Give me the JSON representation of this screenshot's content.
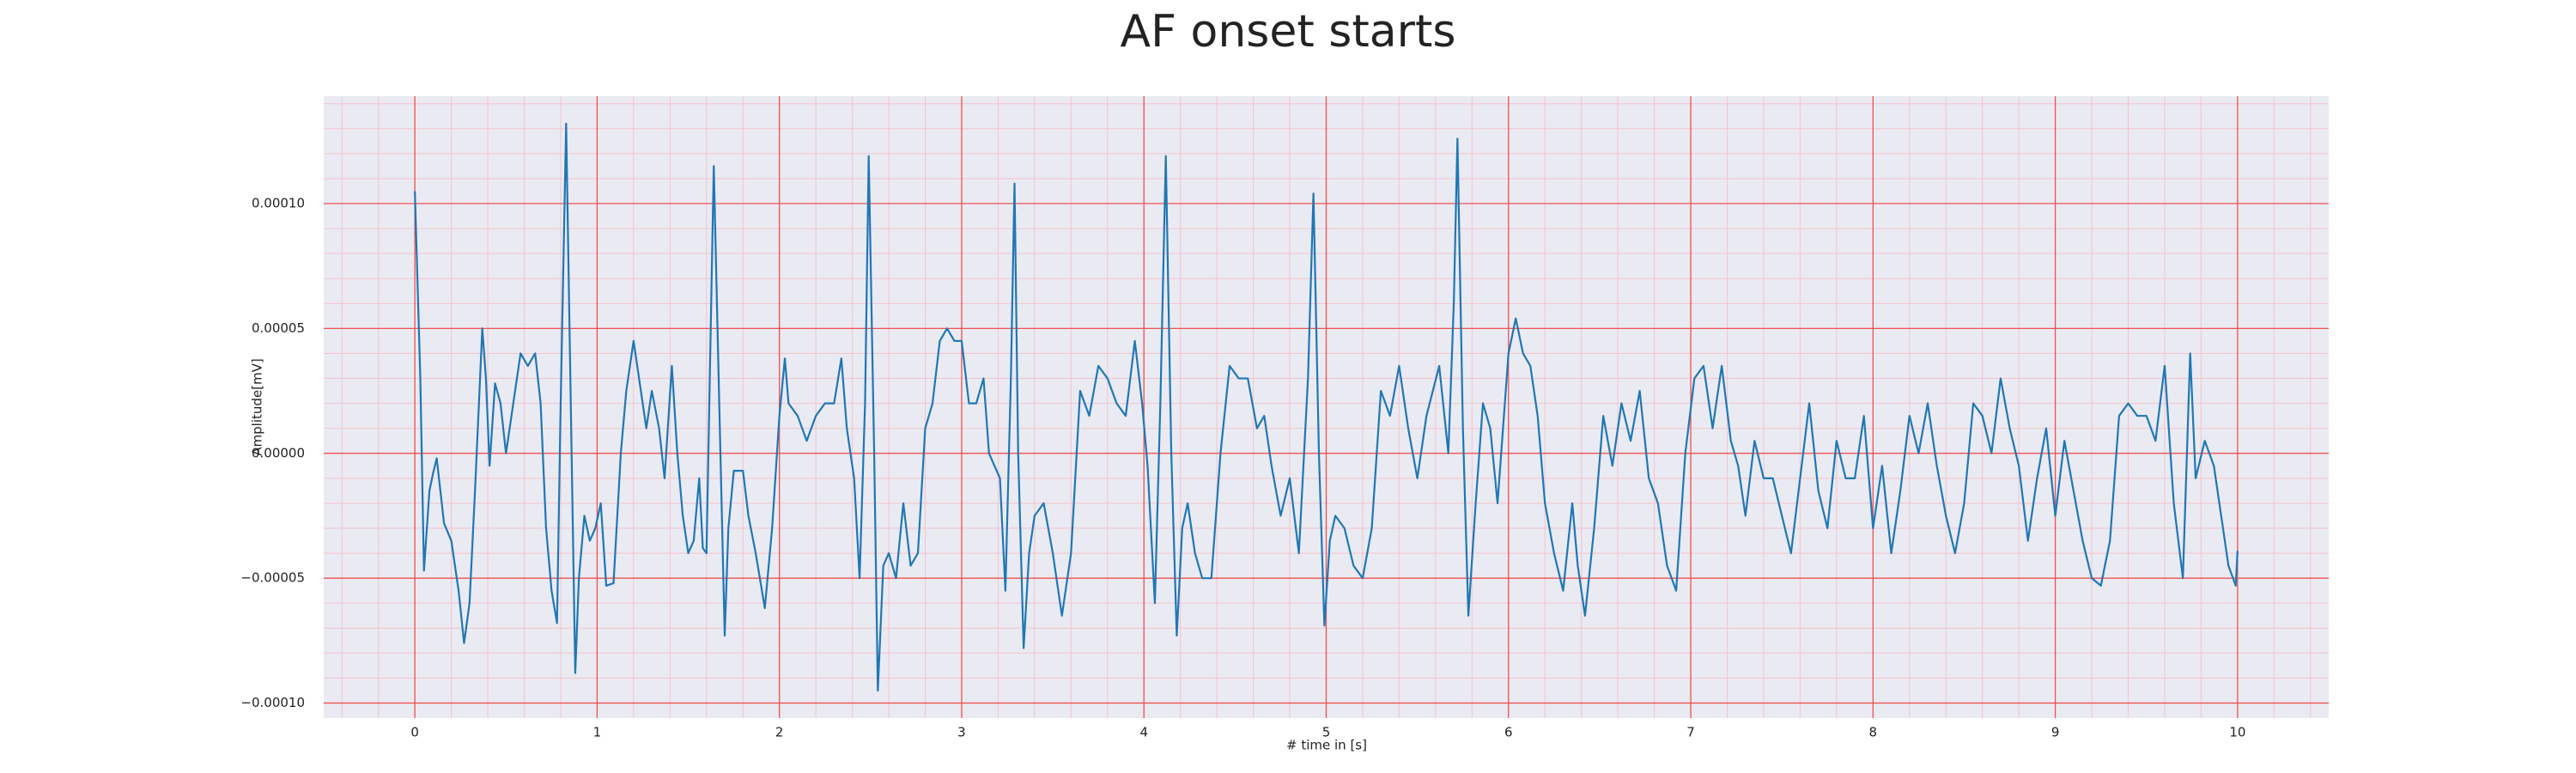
{
  "chart_data": {
    "type": "line",
    "title": "AF onset starts",
    "xlabel": "# time in [s]",
    "ylabel": "Amplitude[mV]",
    "background": "#eaeaf2",
    "major_grid_color": "#f05050",
    "minor_grid_color": "#f3c4cc",
    "grid": true,
    "minor_grid": true,
    "xlim": [
      -0.5,
      10.5
    ],
    "ylim": [
      -0.000106,
      0.000143
    ],
    "xticks": [
      0,
      1,
      2,
      3,
      4,
      5,
      6,
      7,
      8,
      9,
      10
    ],
    "yticks": [
      {
        "value": -0.0001,
        "label": "−0.00010"
      },
      {
        "value": -5e-05,
        "label": "−0.00005"
      },
      {
        "value": 0,
        "label": "0.00000"
      },
      {
        "value": 5e-05,
        "label": "0.00005"
      },
      {
        "value": 0.0001,
        "label": "0.00010"
      }
    ],
    "xminor": [
      -0.4,
      -0.2,
      0.2,
      0.4,
      0.6,
      0.8,
      1.2,
      1.4,
      1.6,
      1.8,
      2.2,
      2.4,
      2.6,
      2.8,
      3.2,
      3.4,
      3.6,
      3.8,
      4.2,
      4.4,
      4.6,
      4.8,
      5.2,
      5.4,
      5.6,
      5.8,
      6.2,
      6.4,
      6.6,
      6.8,
      7.2,
      7.4,
      7.6,
      7.8,
      8.2,
      8.4,
      8.6,
      8.8,
      9.2,
      9.4,
      9.6,
      9.8,
      10.2,
      10.4
    ],
    "yminor": [
      -9e-05,
      -8e-05,
      -7e-05,
      -6e-05,
      -4e-05,
      -3e-05,
      -2e-05,
      -1e-05,
      1e-05,
      2e-05,
      3e-05,
      4e-05,
      6e-05,
      7e-05,
      8e-05,
      9e-05,
      0.00011,
      0.00012,
      0.00013,
      0.00014
    ],
    "series": [
      {
        "name": "signal",
        "color": "#1f77b4",
        "x": [
          0,
          0.03,
          0.05,
          0.08,
          0.1,
          0.12,
          0.14,
          0.16,
          0.2,
          0.24,
          0.27,
          0.3,
          0.33,
          0.37,
          0.39,
          0.41,
          0.44,
          0.47,
          0.5,
          0.53,
          0.58,
          0.62,
          0.66,
          0.69,
          0.72,
          0.75,
          0.78,
          0.8,
          0.83,
          0.86,
          0.88,
          0.9,
          0.93,
          0.96,
          0.99,
          1.02,
          1.05,
          1.09,
          1.13,
          1.16,
          1.2,
          1.23,
          1.27,
          1.3,
          1.34,
          1.37,
          1.41,
          1.44,
          1.47,
          1.5,
          1.53,
          1.56,
          1.58,
          1.6,
          1.64,
          1.67,
          1.7,
          1.72,
          1.75,
          1.8,
          1.83,
          1.87,
          1.92,
          1.96,
          2.0,
          2.03,
          2.05,
          2.1,
          2.15,
          2.2,
          2.25,
          2.3,
          2.34,
          2.37,
          2.41,
          2.44,
          2.47,
          2.49,
          2.52,
          2.54,
          2.57,
          2.6,
          2.64,
          2.68,
          2.72,
          2.76,
          2.8,
          2.84,
          2.88,
          2.92,
          2.96,
          3.0,
          3.04,
          3.08,
          3.12,
          3.15,
          3.18,
          3.21,
          3.24,
          3.27,
          3.29,
          3.31,
          3.34,
          3.37,
          3.4,
          3.45,
          3.5,
          3.55,
          3.6,
          3.65,
          3.7,
          3.75,
          3.8,
          3.85,
          3.9,
          3.95,
          3.99,
          4.02,
          4.06,
          4.09,
          4.12,
          4.15,
          4.18,
          4.21,
          4.24,
          4.28,
          4.32,
          4.37,
          4.42,
          4.47,
          4.52,
          4.57,
          4.62,
          4.66,
          4.7,
          4.75,
          4.8,
          4.85,
          4.9,
          4.93,
          4.96,
          4.99,
          5.02,
          5.05,
          5.1,
          5.15,
          5.2,
          5.25,
          5.3,
          5.35,
          5.4,
          5.45,
          5.5,
          5.55,
          5.62,
          5.67,
          5.7,
          5.72,
          5.75,
          5.78,
          5.82,
          5.86,
          5.9,
          5.94,
          6.0,
          6.04,
          6.08,
          6.12,
          6.16,
          6.2,
          6.25,
          6.3,
          6.35,
          6.38,
          6.42,
          6.47,
          6.52,
          6.57,
          6.62,
          6.67,
          6.72,
          6.77,
          6.82,
          6.87,
          6.92,
          6.97,
          7.02,
          7.07,
          7.12,
          7.17,
          7.22,
          7.26,
          7.3,
          7.35,
          7.4,
          7.45,
          7.5,
          7.55,
          7.6,
          7.65,
          7.7,
          7.75,
          7.8,
          7.85,
          7.9,
          7.95,
          8.0,
          8.05,
          8.1,
          8.15,
          8.2,
          8.25,
          8.3,
          8.35,
          8.4,
          8.45,
          8.5,
          8.55,
          8.6,
          8.65,
          8.7,
          8.75,
          8.8,
          8.85,
          8.9,
          8.95,
          9.0,
          9.05,
          9.1,
          9.15,
          9.2,
          9.25,
          9.3,
          9.35,
          9.4,
          9.45,
          9.5,
          9.55,
          9.6,
          9.65,
          9.7,
          9.74,
          9.77,
          9.82,
          9.87,
          9.9,
          9.95,
          9.99,
          10.0
        ],
        "values": [
          0.000105,
          3e-05,
          -4.7e-05,
          -1.5e-05,
          -8e-06,
          -2e-06,
          -1.5e-05,
          -2.8e-05,
          -3.5e-05,
          -5.5e-05,
          -7.6e-05,
          -6e-05,
          -1.5e-05,
          5e-05,
          3e-05,
          -5e-06,
          2.8e-05,
          2e-05,
          0,
          1.5e-05,
          4e-05,
          3.5e-05,
          4e-05,
          2e-05,
          -3e-05,
          -5.5e-05,
          -6.8e-05,
          2e-05,
          0.000132,
          0,
          -8.8e-05,
          -5e-05,
          -2.5e-05,
          -3.5e-05,
          -3e-05,
          -2e-05,
          -5.3e-05,
          -5.2e-05,
          0,
          2.5e-05,
          4.5e-05,
          3e-05,
          1e-05,
          2.5e-05,
          1e-05,
          -1e-05,
          3.5e-05,
          0,
          -2.5e-05,
          -4e-05,
          -3.5e-05,
          -1e-05,
          -3.8e-05,
          -4e-05,
          0.000115,
          2e-05,
          -7.3e-05,
          -3e-05,
          -7e-06,
          -7e-06,
          -2.5e-05,
          -4e-05,
          -6.2e-05,
          -3e-05,
          1.5e-05,
          3.8e-05,
          2e-05,
          1.5e-05,
          5e-06,
          1.5e-05,
          2e-05,
          2e-05,
          3.8e-05,
          1e-05,
          -1e-05,
          -5e-05,
          2e-05,
          0.000119,
          0,
          -9.5e-05,
          -4.5e-05,
          -4e-05,
          -5e-05,
          -2e-05,
          -4.5e-05,
          -4e-05,
          1e-05,
          2e-05,
          4.5e-05,
          5e-05,
          4.5e-05,
          4.5e-05,
          2e-05,
          2e-05,
          3e-05,
          0,
          -5e-06,
          -1e-05,
          -5.5e-05,
          3e-05,
          0.000108,
          0,
          -7.8e-05,
          -4e-05,
          -2.5e-05,
          -2e-05,
          -4e-05,
          -6.5e-05,
          -4e-05,
          2.5e-05,
          1.5e-05,
          3.5e-05,
          3e-05,
          2e-05,
          1.5e-05,
          4.5e-05,
          2e-05,
          -5e-06,
          -6e-05,
          2e-05,
          0.000119,
          0,
          -7.3e-05,
          -3e-05,
          -2e-05,
          -4e-05,
          -5e-05,
          -5e-05,
          0,
          3.5e-05,
          3e-05,
          3e-05,
          1e-05,
          1.5e-05,
          -5e-06,
          -2.5e-05,
          -1e-05,
          -4e-05,
          3e-05,
          0.000104,
          0,
          -6.9e-05,
          -3.5e-05,
          -2.5e-05,
          -3e-05,
          -4.5e-05,
          -5e-05,
          -3e-05,
          2.5e-05,
          1.5e-05,
          3.5e-05,
          1e-05,
          -1e-05,
          1.5e-05,
          3.5e-05,
          0,
          6e-05,
          0.000126,
          1e-05,
          -6.5e-05,
          -2e-05,
          2e-05,
          1e-05,
          -2e-05,
          4e-05,
          5.4e-05,
          4e-05,
          3.5e-05,
          1.5e-05,
          -2e-05,
          -4e-05,
          -5.5e-05,
          -2e-05,
          -4.5e-05,
          -6.5e-05,
          -3e-05,
          1.5e-05,
          -5e-06,
          2e-05,
          5e-06,
          2.5e-05,
          -1e-05,
          -2e-05,
          -4.5e-05,
          -5.5e-05,
          0,
          3e-05,
          3.5e-05,
          1e-05,
          3.5e-05,
          5e-06,
          -5e-06,
          -2.5e-05,
          5e-06,
          -1e-05,
          -1e-05,
          -2.5e-05,
          -4e-05,
          -1e-05,
          2e-05,
          -1.5e-05,
          -3e-05,
          5e-06,
          -1e-05,
          -1e-05,
          1.5e-05,
          -3e-05,
          -5e-06,
          -4e-05,
          -1.5e-05,
          1.5e-05,
          0,
          2e-05,
          -5e-06,
          -2.5e-05,
          -4e-05,
          -2e-05,
          2e-05,
          1.5e-05,
          0,
          3e-05,
          1e-05,
          -5e-06,
          -3.5e-05,
          -1e-05,
          1e-05,
          -2.5e-05,
          5e-06,
          -1.5e-05,
          -3.5e-05,
          -5e-05,
          -5.3e-05,
          -3.5e-05,
          1.5e-05,
          2e-05,
          1.5e-05,
          1.5e-05,
          5e-06,
          3.5e-05,
          -2e-05,
          -5e-05,
          4e-05,
          -1e-05,
          5e-06,
          -5e-06,
          -2e-05,
          -4.5e-05,
          -5.3e-05,
          -3.9e-05
        ]
      }
    ]
  }
}
